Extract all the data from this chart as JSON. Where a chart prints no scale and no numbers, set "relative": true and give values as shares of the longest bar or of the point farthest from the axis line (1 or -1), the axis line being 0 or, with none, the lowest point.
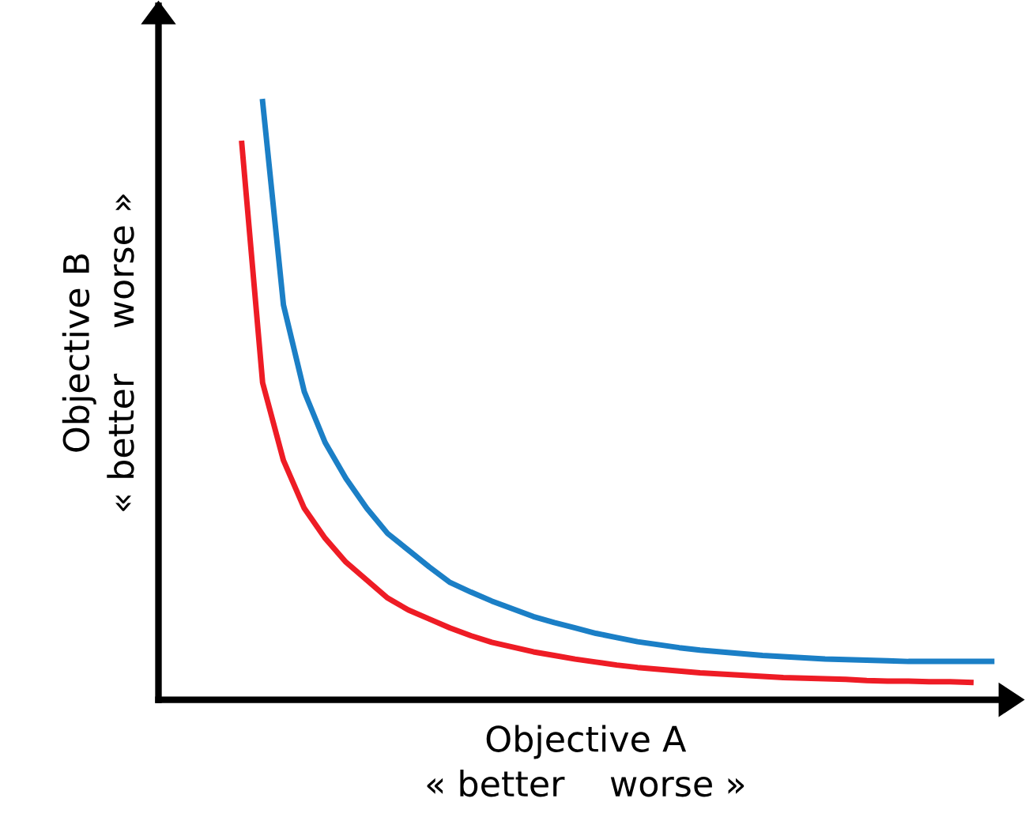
{
  "chart_data": {
    "type": "line",
    "relative": true,
    "xlabel": "Objective A\n« better    worse »",
    "ylabel": "Objective B\n« better    worse »",
    "legend": false,
    "marker": "none",
    "line_style": "solid",
    "categories": [
      null,
      null,
      null,
      null,
      null,
      null,
      null,
      null,
      null,
      null,
      null,
      null,
      null,
      null,
      null,
      null,
      null,
      null,
      null,
      null,
      null,
      null,
      null,
      null,
      null,
      null,
      null,
      null,
      null,
      null,
      null,
      null,
      null,
      null,
      null,
      null,
      null,
      null,
      null,
      null,
      null
    ],
    "series": [
      {
        "color": "#ee1c25",
        "values": [
          null,
          null,
          null,
          null,
          0.93,
          0.53,
          0.4,
          0.32,
          0.27,
          0.23,
          0.2,
          0.17,
          0.15,
          0.135,
          0.12,
          0.107,
          0.096,
          0.088,
          0.08,
          0.074,
          0.068,
          0.063,
          0.058,
          0.054,
          0.051,
          0.048,
          0.045,
          0.043,
          0.041,
          0.039,
          0.037,
          0.036,
          0.035,
          0.034,
          0.032,
          0.031,
          0.031,
          0.03,
          0.03,
          0.029,
          null
        ]
      },
      {
        "color": "#1b7fc6",
        "values": [
          null,
          null,
          null,
          null,
          null,
          1.0,
          0.66,
          0.515,
          0.43,
          0.37,
          0.32,
          0.278,
          0.25,
          0.222,
          0.196,
          0.18,
          0.165,
          0.152,
          0.139,
          0.129,
          0.12,
          0.111,
          0.104,
          0.097,
          0.092,
          0.087,
          0.083,
          0.08,
          0.077,
          0.074,
          0.072,
          0.07,
          0.068,
          0.067,
          0.066,
          0.065,
          0.064,
          0.064,
          0.064,
          0.064,
          0.064
        ]
      }
    ]
  }
}
